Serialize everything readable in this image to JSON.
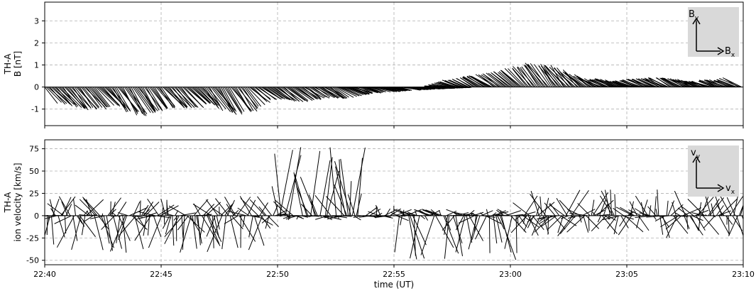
{
  "chart_data": [
    {
      "type": "stick-plot",
      "panel": "magnetic-field",
      "ylabel_lines": [
        "TH-A",
        "B [nT]"
      ],
      "xlim": [
        0,
        30
      ],
      "ylim": [
        -1.75,
        3.85
      ],
      "yticks": [
        -1,
        0,
        1,
        2,
        3
      ],
      "grid": true,
      "inset": {
        "vertical_label": "B",
        "vertical_sub": "y",
        "horizontal_label": "B",
        "horizontal_sub": "x",
        "position": "top-right"
      },
      "envelope": {
        "x_min": [
          0,
          0.7,
          1.0,
          2.0,
          2.4,
          3.0,
          3.6,
          4.4,
          5.0,
          5.8,
          6.3,
          7.5,
          8.5,
          9.0,
          9.5,
          10.3,
          11.5,
          12.3,
          13.0,
          13.8,
          14.6,
          16.0,
          17.0,
          18.0,
          20.0,
          30
        ],
        "y_min": [
          -0.75,
          -0.95,
          -1.05,
          -1.0,
          -0.85,
          -1.2,
          -1.35,
          -1.05,
          -0.95,
          -1.0,
          -0.75,
          -1.3,
          -1.05,
          -0.6,
          -0.55,
          -0.7,
          -0.5,
          -0.55,
          -0.35,
          -0.25,
          -0.2,
          -0.1,
          -0.05,
          0,
          0,
          0
        ],
        "x_max": [
          0,
          17.0,
          17.8,
          18.5,
          19.5,
          20.3,
          20.7,
          21.5,
          22.5,
          23.3,
          24.0,
          24.5,
          25.0,
          25.7,
          26.3,
          27.2,
          27.8,
          28.5,
          29.0,
          29.5,
          30
        ],
        "y_max": [
          0,
          0,
          0.3,
          0.45,
          0.6,
          0.75,
          0.9,
          1.1,
          1.0,
          0.6,
          0.35,
          0.4,
          0.25,
          0.35,
          0.4,
          0.45,
          0.35,
          0.25,
          0.35,
          0.3,
          0.45
        ]
      }
    },
    {
      "type": "stick-plot",
      "panel": "ion-velocity",
      "ylabel_lines": [
        "TH-A",
        "ion velocity [km/s]"
      ],
      "xlabel": "time (UT)",
      "xlim": [
        0,
        30
      ],
      "ylim": [
        -55,
        85
      ],
      "yticks": [
        -50,
        -25,
        0,
        25,
        50,
        75
      ],
      "xticks": [
        0,
        5,
        10,
        15,
        20,
        25,
        30
      ],
      "xtick_labels": [
        "22:40",
        "22:45",
        "22:50",
        "22:55",
        "23:00",
        "23:05",
        "23:10"
      ],
      "grid": true,
      "inset": {
        "vertical_label": "v",
        "vertical_sub": "y",
        "horizontal_label": "v",
        "horizontal_sub": "x",
        "position": "top-right"
      },
      "segments": [
        {
          "x_start": 0.0,
          "x_end": 9.8,
          "min_y": -42,
          "max_y": 22
        },
        {
          "x_start": 10.0,
          "x_end": 13.5,
          "min_y": -5,
          "max_y": 78
        },
        {
          "x_start": 13.5,
          "x_end": 15.0,
          "min_y": -3,
          "max_y": 12
        },
        {
          "x_start": 15.0,
          "x_end": 20.3,
          "min_y": -50,
          "max_y": 8
        },
        {
          "x_start": 20.3,
          "x_end": 30.0,
          "min_y": -25,
          "max_y": 30
        }
      ]
    }
  ]
}
